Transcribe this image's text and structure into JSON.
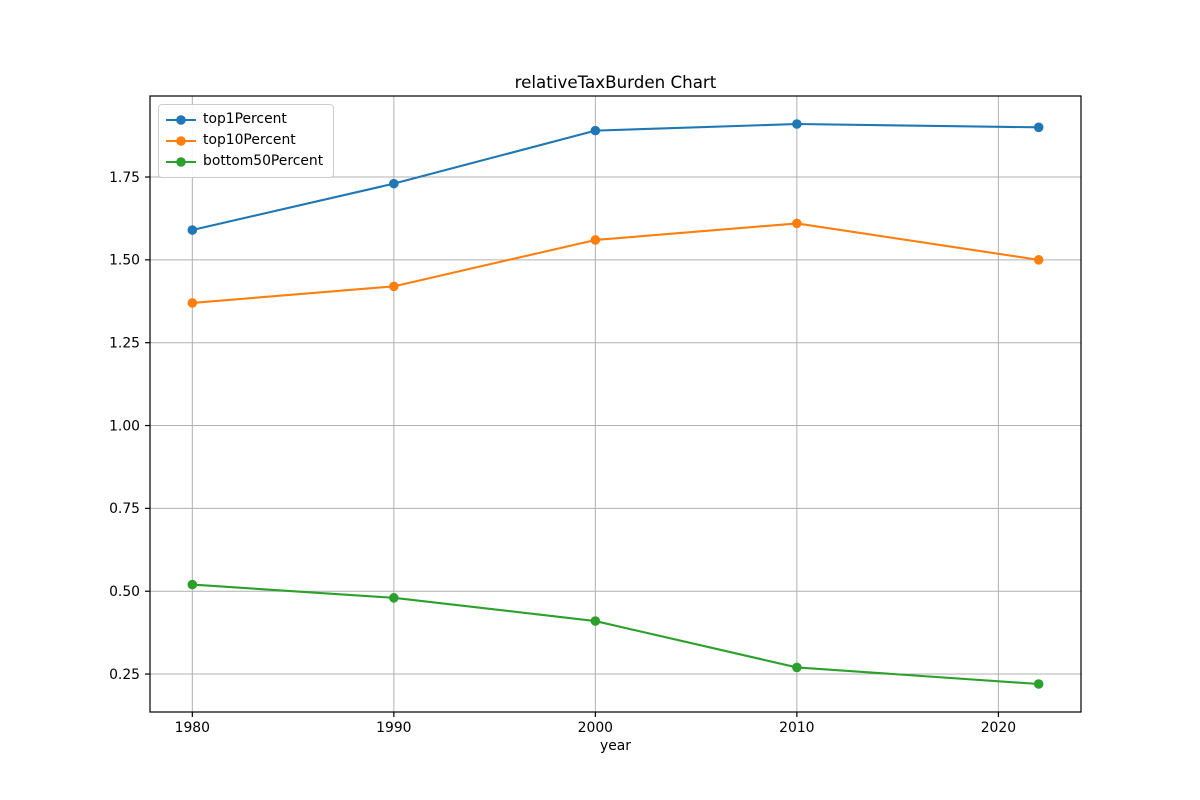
{
  "chart_data": {
    "type": "line",
    "title": "relativeTaxBurden Chart",
    "xlabel": "year",
    "ylabel": "",
    "x": [
      1980,
      1990,
      2000,
      2010,
      2022
    ],
    "series": [
      {
        "name": "top1Percent",
        "color": "#1f77b4",
        "values": [
          1.59,
          1.73,
          1.89,
          1.91,
          1.9
        ]
      },
      {
        "name": "top10Percent",
        "color": "#ff7f0e",
        "values": [
          1.37,
          1.42,
          1.56,
          1.61,
          1.5
        ]
      },
      {
        "name": "bottom50Percent",
        "color": "#2ca02c",
        "values": [
          0.52,
          0.48,
          0.41,
          0.27,
          0.22
        ]
      }
    ],
    "xlim": [
      1977.9,
      2024.1
    ],
    "ylim": [
      0.1355,
      1.9945
    ],
    "xticks": [
      1980,
      1990,
      2000,
      2010,
      2020
    ],
    "xtick_labels": [
      "1980",
      "1990",
      "2000",
      "2010",
      "2020"
    ],
    "yticks": [
      0.25,
      0.5,
      0.75,
      1.0,
      1.25,
      1.5,
      1.75
    ],
    "ytick_labels": [
      "0.25",
      "0.50",
      "0.75",
      "1.00",
      "1.25",
      "1.50",
      "1.75"
    ],
    "grid": true,
    "legend_position": "upper left",
    "colors": {
      "grid": "#b0b0b0",
      "spine": "#000000",
      "tick": "#000000",
      "background": "#ffffff"
    },
    "marker": "circle",
    "line_width": 2.1,
    "marker_radius": 4.8
  }
}
